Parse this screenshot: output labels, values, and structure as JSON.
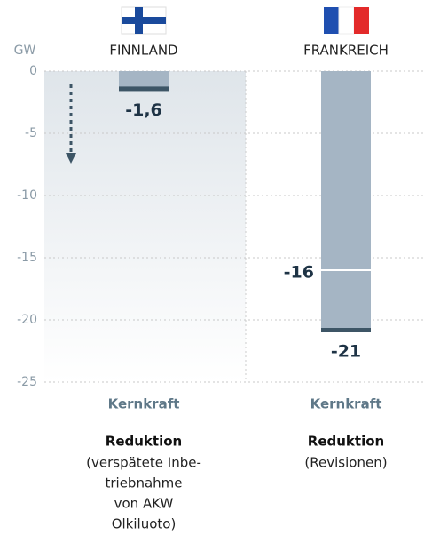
{
  "chart_data": {
    "type": "bar",
    "y_label": "GW",
    "categories": [
      "FINNLAND",
      "FRANKREICH"
    ],
    "values": [
      -1.6,
      -21
    ],
    "value_labels": [
      "-1,6",
      "-21"
    ],
    "marker_values": [
      null,
      -16
    ],
    "marker_labels": [
      null,
      "-16"
    ],
    "color": "#a5b5c4",
    "ylim": [
      -25,
      0
    ],
    "yticks": [
      0,
      -5,
      -10,
      -15,
      -20,
      -25
    ],
    "grid": true,
    "subcategories": [
      "Kernkraft",
      "Kernkraft"
    ],
    "descriptions": [
      {
        "title": "Reduktion",
        "lines": [
          "(verspätete Inbe-",
          "triebnahme",
          "von AKW",
          "Olkiluoto)"
        ]
      },
      {
        "title": "Reduktion",
        "lines": [
          "(Revisionen)"
        ]
      }
    ]
  }
}
